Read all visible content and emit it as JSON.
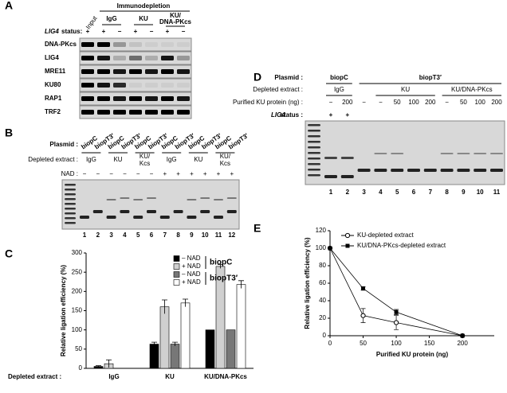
{
  "panel_labels": [
    "A",
    "B",
    "C",
    "D",
    "E"
  ],
  "panel_a": {
    "header": "Immunodepletion",
    "columns": [
      "Input",
      "IgG",
      "KU"
    ],
    "last_column": [
      "KU/",
      "DNA-PKcs"
    ],
    "lig4_gene": "LIG4",
    "status_label": "status:",
    "lig4_signs": [
      "+",
      "+",
      "−",
      "+",
      "−",
      "+",
      "−"
    ],
    "rows": [
      "DNA-PKcs",
      "LIG4",
      "MRE11",
      "KU80",
      "RAP1",
      "TRF2"
    ]
  },
  "panel_b": {
    "plasmid_label": "Plasmid :",
    "plasmids": [
      "biopC",
      "biopT3′",
      "biopC",
      "biopT3′",
      "biopC",
      "biopT3′",
      "biopC",
      "biopT3′",
      "biopC",
      "biopT3′",
      "biopC",
      "biopT3′"
    ],
    "extract_label": "Depleted extract :",
    "extracts": [
      "IgG",
      "KU",
      "KU/\nKcs",
      "IgG",
      "KU",
      "KU/\nKcs"
    ],
    "nad_label": "NAD :",
    "nad_signs": [
      "−",
      "−",
      "−",
      "−",
      "−",
      "−",
      "+",
      "+",
      "+",
      "+",
      "+",
      "+"
    ],
    "lanes": [
      "1",
      "2",
      "3",
      "4",
      "5",
      "6",
      "7",
      "8",
      "9",
      "10",
      "11",
      "12"
    ]
  },
  "panel_d": {
    "plasmid_label": "Plasmid :",
    "plasmids": [
      "biopC",
      "biopT3′"
    ],
    "extract_label": "Depleted extract :",
    "extracts": [
      "IgG",
      "KU",
      "KU/DNA-PKcs"
    ],
    "ku_label": "Purified KU protein (ng) :",
    "ku_amounts": [
      "−",
      "200",
      "−",
      "−",
      "50",
      "100",
      "200",
      "−",
      "50",
      "100",
      "200"
    ],
    "lig4_gene": "LIG4",
    "status_label": "status :",
    "lig4_signs": [
      "+",
      "+"
    ],
    "lanes": [
      "1",
      "2",
      "3",
      "4",
      "5",
      "6",
      "7",
      "8",
      "9",
      "10",
      "11"
    ]
  },
  "chart_data": [
    {
      "type": "bar",
      "y_label": "Relative ligation efficiency (%)",
      "x_label": "Depleted extract :",
      "categories": [
        "IgG",
        "KU",
        "KU/DNA-PKcs"
      ],
      "series": [
        {
          "name": "– NAD",
          "color": "#000000",
          "values": [
            5,
            63,
            100
          ],
          "errors": [
            2,
            5,
            0
          ]
        },
        {
          "name": "+ NAD",
          "color": "#d0d0d0",
          "values": [
            12,
            160,
            265
          ],
          "errors": [
            10,
            18,
            5
          ]
        },
        {
          "name": "– NAD",
          "color": "#777777",
          "values": [
            0,
            63,
            100
          ],
          "errors": [
            0,
            5,
            0
          ]
        },
        {
          "name": "+ NAD",
          "color": "#ffffff",
          "values": [
            0,
            170,
            218
          ],
          "errors": [
            0,
            10,
            10
          ]
        }
      ],
      "legend_groups": [
        "biopC",
        "biopT3′"
      ],
      "ylim": [
        0,
        300
      ],
      "yticks": [
        0,
        50,
        100,
        150,
        200,
        250,
        300
      ]
    },
    {
      "type": "line",
      "y_label": "Relative ligation efficiency (%)",
      "x_label": "Purified KU protein (ng)",
      "x": [
        0,
        50,
        100,
        200
      ],
      "series": [
        {
          "name": "KU-depleted extract",
          "color": "#000000",
          "marker": "open",
          "values": [
            100,
            23,
            15,
            0
          ],
          "errors": [
            0,
            8,
            8,
            0
          ]
        },
        {
          "name": "KU/DNA-PKcs-depleted extract",
          "color": "#000000",
          "marker": "filled",
          "values": [
            100,
            54,
            27,
            0
          ],
          "errors": [
            0,
            2,
            3,
            0
          ]
        }
      ],
      "xlim": [
        0,
        248
      ],
      "xticks": [
        0,
        50,
        100,
        150,
        200
      ],
      "ylim": [
        0,
        120
      ],
      "yticks": [
        0,
        20,
        40,
        60,
        80,
        100,
        120
      ]
    }
  ]
}
